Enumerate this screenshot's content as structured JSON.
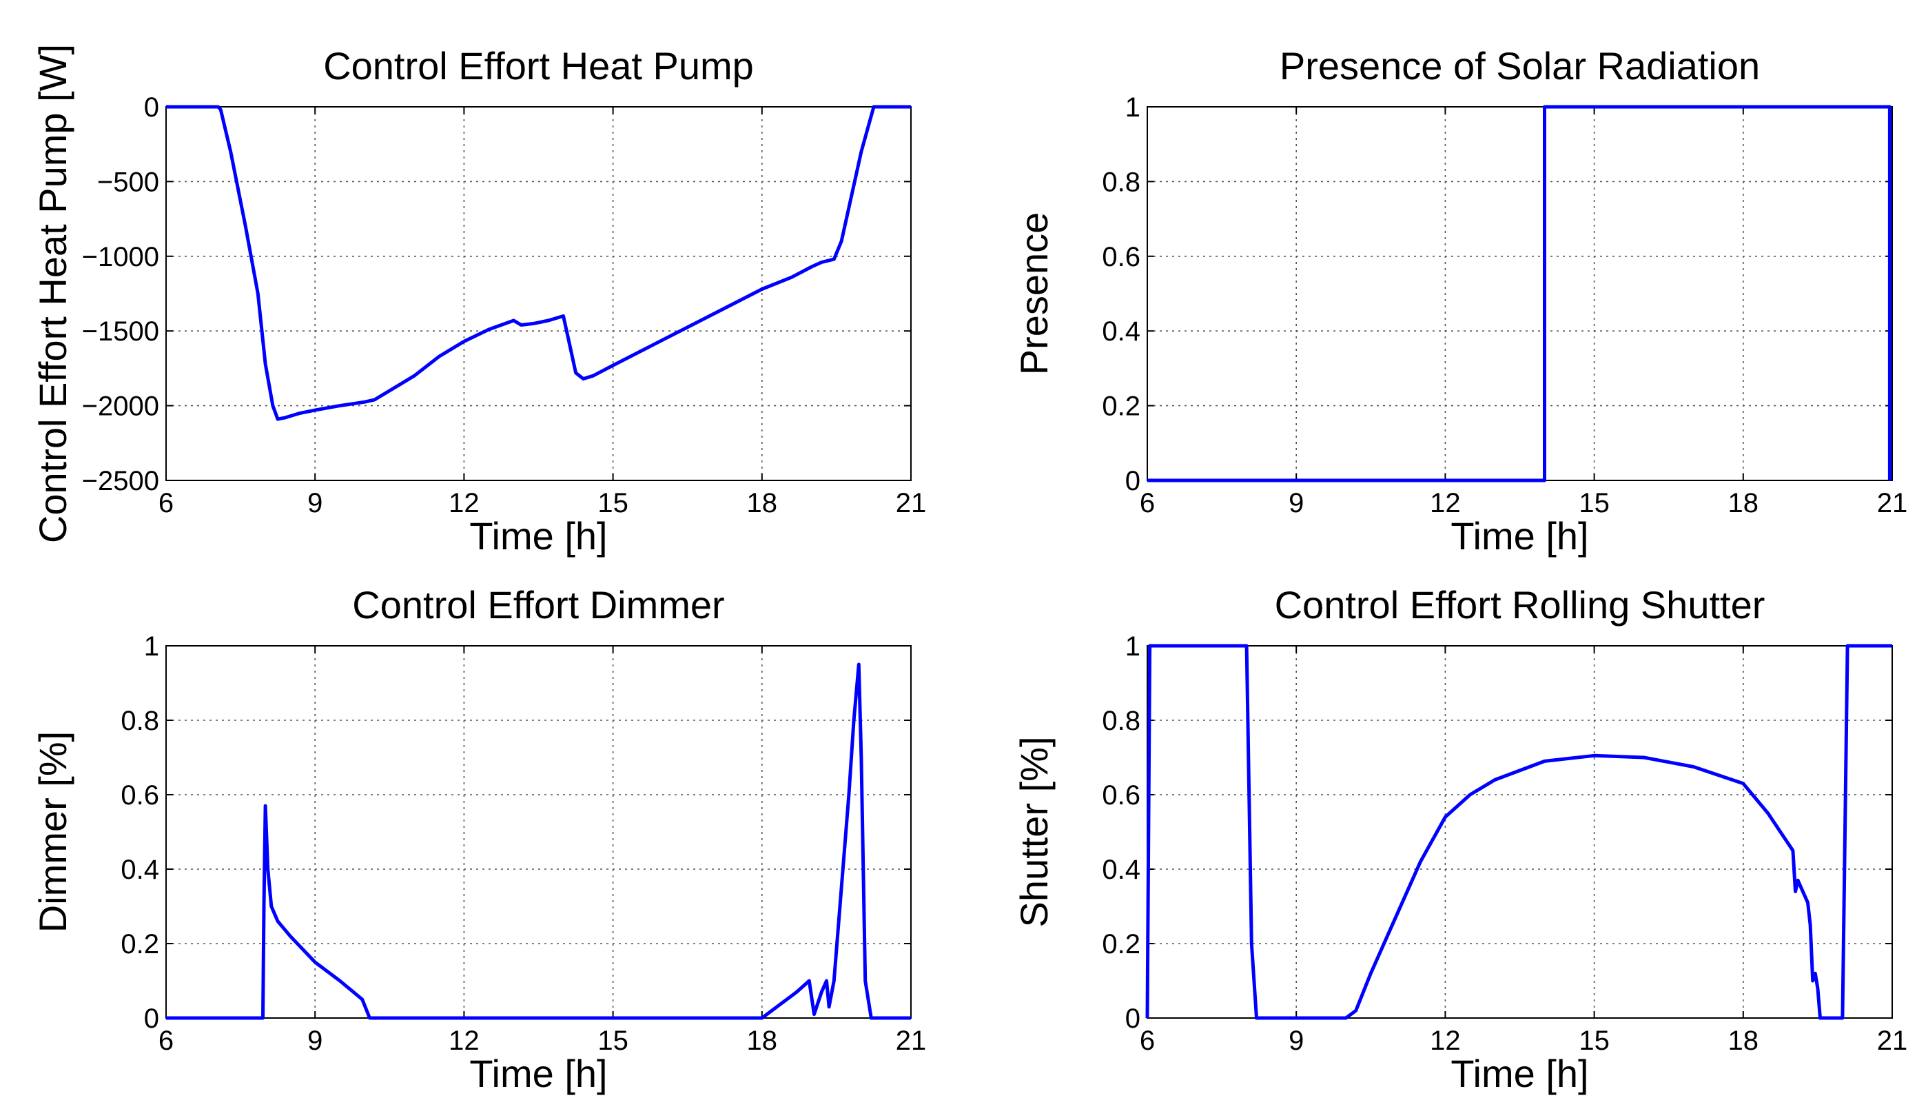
{
  "chart_data": [
    {
      "type": "line",
      "title": "Control Effort Heat Pump",
      "xlabel": "Time [h]",
      "ylabel": "Control Effort Heat Pump [W]",
      "xlim": [
        6,
        21
      ],
      "ylim": [
        -2500,
        0
      ],
      "xticks": [
        6,
        9,
        12,
        15,
        18,
        21
      ],
      "yticks": [
        0,
        -500,
        -1000,
        -1500,
        -2000,
        -2500
      ],
      "grid": true,
      "series": [
        {
          "name": "heat pump",
          "color": "#0000ff",
          "x": [
            6,
            7.05,
            7.1,
            7.3,
            7.6,
            7.85,
            8.0,
            8.15,
            8.25,
            8.4,
            8.7,
            9.0,
            9.5,
            10.0,
            10.2,
            10.5,
            11.0,
            11.5,
            12.0,
            12.5,
            13.0,
            13.15,
            13.4,
            13.7,
            14.0,
            14.1,
            14.25,
            14.4,
            14.6,
            15.0,
            16.0,
            17.0,
            18.0,
            18.6,
            19.0,
            19.2,
            19.45,
            19.6,
            19.8,
            20.0,
            20.25,
            20.3,
            21.0
          ],
          "values": [
            0,
            0,
            -20,
            -300,
            -800,
            -1250,
            -1720,
            -2000,
            -2090,
            -2080,
            -2050,
            -2030,
            -2000,
            -1975,
            -1960,
            -1900,
            -1800,
            -1670,
            -1570,
            -1490,
            -1430,
            -1460,
            -1450,
            -1430,
            -1400,
            -1550,
            -1780,
            -1820,
            -1800,
            -1730,
            -1560,
            -1390,
            -1220,
            -1140,
            -1070,
            -1040,
            -1020,
            -900,
            -600,
            -300,
            0,
            0,
            0
          ]
        }
      ]
    },
    {
      "type": "line",
      "title": "Presence of Solar Radiation",
      "xlabel": "Time [h]",
      "ylabel": "Presence",
      "xlim": [
        6,
        21
      ],
      "ylim": [
        0,
        1
      ],
      "xticks": [
        6,
        9,
        12,
        15,
        18,
        21
      ],
      "yticks": [
        0,
        0.2,
        0.4,
        0.6,
        0.8,
        1
      ],
      "grid": true,
      "series": [
        {
          "name": "presence",
          "color": "#0000ff",
          "x": [
            6,
            14,
            14,
            20.95,
            20.95
          ],
          "values": [
            0,
            0,
            1,
            1,
            0
          ]
        }
      ]
    },
    {
      "type": "line",
      "title": "Control Effort Dimmer",
      "xlabel": "Time [h]",
      "ylabel": "Dimmer [%]",
      "xlim": [
        6,
        21
      ],
      "ylim": [
        0,
        1
      ],
      "xticks": [
        6,
        9,
        12,
        15,
        18,
        21
      ],
      "yticks": [
        0,
        0.2,
        0.4,
        0.6,
        0.8,
        1
      ],
      "grid": true,
      "series": [
        {
          "name": "dimmer",
          "color": "#0000ff",
          "x": [
            6,
            7.95,
            7.97,
            8.0,
            8.05,
            8.12,
            8.25,
            8.5,
            9.0,
            9.5,
            9.95,
            10.1,
            10.3,
            18.0,
            18.3,
            18.7,
            18.95,
            19.05,
            19.2,
            19.3,
            19.35,
            19.45,
            19.6,
            19.75,
            19.85,
            19.95,
            20.0,
            20.08,
            20.2,
            21.0
          ],
          "values": [
            0,
            0,
            0.3,
            0.57,
            0.4,
            0.3,
            0.26,
            0.22,
            0.15,
            0.1,
            0.05,
            0,
            0,
            0,
            0.03,
            0.07,
            0.1,
            0.01,
            0.07,
            0.1,
            0.03,
            0.1,
            0.35,
            0.6,
            0.8,
            0.95,
            0.7,
            0.1,
            0,
            0
          ]
        }
      ]
    },
    {
      "type": "line",
      "title": "Control Effort Rolling Shutter",
      "xlabel": "Time [h]",
      "ylabel": "Shutter [%]",
      "xlim": [
        6,
        21
      ],
      "ylim": [
        0,
        1
      ],
      "xticks": [
        6,
        9,
        12,
        15,
        18,
        21
      ],
      "yticks": [
        0,
        0.2,
        0.4,
        0.6,
        0.8,
        1
      ],
      "grid": true,
      "series": [
        {
          "name": "shutter",
          "color": "#0000ff",
          "x": [
            6,
            6.05,
            8.0,
            8.05,
            8.1,
            8.2,
            10.0,
            10.2,
            10.5,
            11.0,
            11.5,
            12.0,
            12.5,
            13.0,
            14.0,
            15.0,
            16.0,
            17.0,
            18.0,
            18.5,
            18.75,
            19.0,
            19.05,
            19.1,
            19.3,
            19.35,
            19.4,
            19.45,
            19.5,
            19.55,
            19.7,
            20.0,
            20.05,
            20.1,
            21.0
          ],
          "values": [
            0,
            1,
            1,
            0.6,
            0.2,
            0,
            0,
            0.02,
            0.12,
            0.27,
            0.42,
            0.54,
            0.6,
            0.64,
            0.69,
            0.705,
            0.7,
            0.675,
            0.63,
            0.55,
            0.5,
            0.45,
            0.34,
            0.37,
            0.31,
            0.25,
            0.1,
            0.12,
            0.08,
            0,
            0,
            0,
            0.5,
            1,
            1
          ]
        }
      ]
    }
  ]
}
